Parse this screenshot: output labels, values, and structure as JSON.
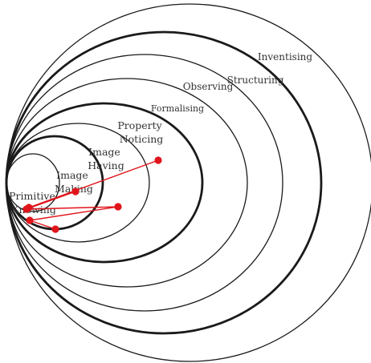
{
  "colors": {
    "ring": "#1a1a1a",
    "label": "#333333",
    "path": "#e0141b",
    "background": "#ffffff"
  },
  "layers": [
    {
      "id": "primitive-knowing",
      "lines": [
        "Primitive",
        "Knowing"
      ],
      "ring_weight": "thin"
    },
    {
      "id": "image-making",
      "lines": [
        "Image",
        "Making"
      ],
      "ring_weight": "thick"
    },
    {
      "id": "image-having",
      "lines": [
        "Image",
        "Having"
      ],
      "ring_weight": "thin"
    },
    {
      "id": "property-noticing",
      "lines": [
        "Property",
        "Noticing"
      ],
      "ring_weight": "thick"
    },
    {
      "id": "formalising",
      "lines": [
        "Formalising"
      ],
      "ring_weight": "thin"
    },
    {
      "id": "observing",
      "lines": [
        "Observing"
      ],
      "ring_weight": "thin"
    },
    {
      "id": "structuring",
      "lines": [
        "Structuring"
      ],
      "ring_weight": "thick"
    },
    {
      "id": "inventising",
      "lines": [
        "Inventising"
      ],
      "ring_weight": "thin"
    }
  ],
  "growth_path": {
    "point_count": 7,
    "segment_count": 6
  }
}
